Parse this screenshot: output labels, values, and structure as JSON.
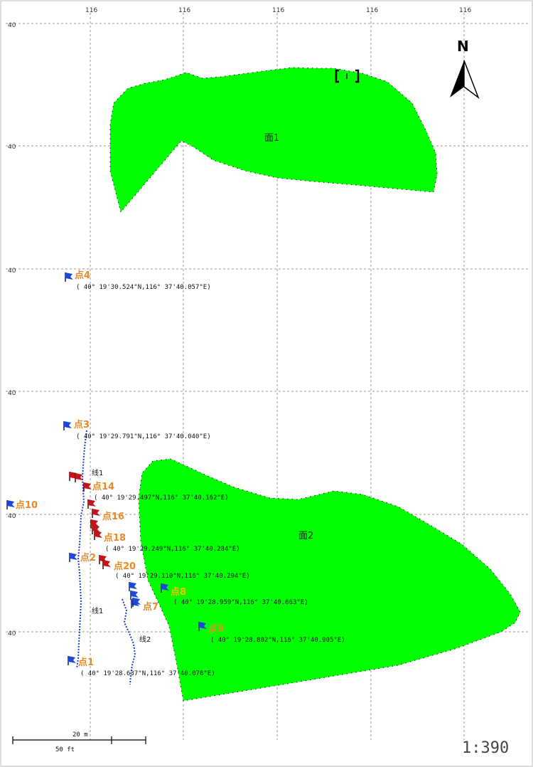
{
  "map": {
    "grid": {
      "top_labels": [
        "116",
        "116",
        "116",
        "116",
        "116"
      ],
      "left_labels": [
        "40",
        "40",
        "40",
        "40",
        "40",
        "40"
      ]
    },
    "north_label": "N",
    "scale_ratio": "1:390",
    "scale_bar": {
      "metric_label": "20 m",
      "imperial_label": "50 ft"
    },
    "areas": [
      {
        "id": "area1",
        "label": "面1",
        "color": "#00ff00"
      },
      {
        "id": "area2",
        "label": "面2",
        "color": "#00ff00"
      }
    ],
    "lines": [
      {
        "id": "line1",
        "labels": [
          "线1",
          "线1"
        ],
        "color": "#1a3adb"
      },
      {
        "id": "line2",
        "labels": [
          "线2"
        ],
        "color": "#1a3adb"
      }
    ],
    "points": [
      {
        "id": "p4",
        "label": "点4",
        "coord": "( 40° 19'30.524\"N,116° 37'40.057\"E)",
        "flag": "blue",
        "label_color": "#e8892a"
      },
      {
        "id": "p3",
        "label": "点3",
        "coord": "( 40° 19'29.791\"N,116° 37'40.040\"E)",
        "flag": "blue",
        "label_color": "#e8892a"
      },
      {
        "id": "p14",
        "label": "点14",
        "coord": "( 40° 19'29.497\"N,116° 37'40.162\"E)",
        "flag": "red",
        "label_color": "#e8892a"
      },
      {
        "id": "p10",
        "label": "点10",
        "coord": "",
        "flag": "blue",
        "label_color": "#e8892a"
      },
      {
        "id": "p16",
        "label": "点16",
        "coord": "",
        "flag": "red",
        "label_color": "#e8892a"
      },
      {
        "id": "p18",
        "label": "点18",
        "coord": "( 40° 19'29.249\"N,116° 37'40.284\"E)",
        "flag": "red",
        "label_color": "#e8892a"
      },
      {
        "id": "p2",
        "label": "点2",
        "coord": "",
        "flag": "blue",
        "label_color": "#e8892a"
      },
      {
        "id": "p20",
        "label": "点20",
        "coord": "( 40° 19'29.110\"N,116° 37'40.294\"E)",
        "flag": "red",
        "label_color": "#e8892a"
      },
      {
        "id": "p8",
        "label": "点8",
        "coord": "( 40° 19'28.959\"N,116° 37'40.663\"E)",
        "flag": "blue",
        "label_color": "#f2c400"
      },
      {
        "id": "p7",
        "label": "点7",
        "coord": "",
        "flag": "blue",
        "label_color": "#e8892a"
      },
      {
        "id": "p9",
        "label": "点9",
        "coord": "( 40° 19'28.802\"N,116° 37'40.905\"E)",
        "flag": "blue",
        "label_color": "#e8892a"
      },
      {
        "id": "p1",
        "label": "点1",
        "coord": "( 40° 19'28.637\"N,116° 37'40.070\"E)",
        "flag": "blue",
        "label_color": "#e8892a"
      }
    ]
  }
}
